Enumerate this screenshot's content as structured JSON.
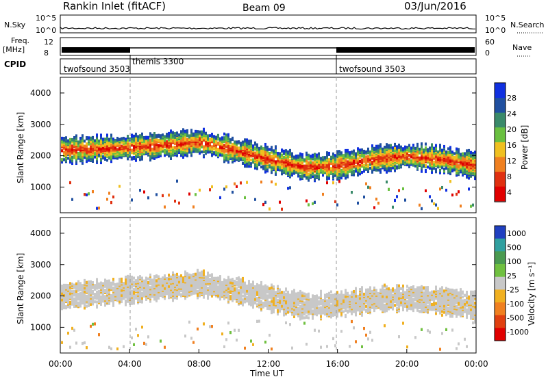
{
  "header": {
    "station": "Rankin Inlet (fitACF)",
    "beam": "Beam 09",
    "date": "03/Jun/2016"
  },
  "noise_panel": {
    "left_label": "N.Sky",
    "right_label": "N.Search",
    "ticks_left": [
      "10^5",
      "10^0"
    ],
    "ticks_right": [
      "10^5",
      "10^0"
    ]
  },
  "freq_panel": {
    "left_label": "Freq.",
    "left_unit": "[MHz]",
    "right_label": "Nave",
    "ticks_left": [
      "12",
      "8"
    ],
    "ticks_right": [
      "60",
      "0"
    ]
  },
  "cpid": {
    "label": "CPID",
    "segments": [
      {
        "name": "twofsound 3503",
        "start": 0,
        "end": 4
      },
      {
        "name": "themis 3300",
        "start": 4,
        "end": 16
      },
      {
        "name": "twofsound 3503",
        "start": 16,
        "end": 24
      }
    ]
  },
  "axes": {
    "y_label": "Slant Range [km]",
    "y_ticks": [
      "1000",
      "2000",
      "3000",
      "4000"
    ],
    "x_label": "Time UT",
    "x_ticks": [
      "00:00",
      "04:00",
      "08:00",
      "12:00",
      "16:00",
      "20:00",
      "00:00"
    ]
  },
  "power_scale": {
    "label": "Power [dB]",
    "ticks": [
      "4",
      "8",
      "12",
      "16",
      "20",
      "24",
      "28"
    ],
    "colors": [
      "#1030e0",
      "#2050a0",
      "#3a8a6a",
      "#6ac040",
      "#f0c020",
      "#f08020",
      "#e03010",
      "#e00000"
    ]
  },
  "velocity_scale": {
    "label": "Velocity [m s⁻¹]",
    "ticks": [
      "1000",
      "500",
      "100",
      "25",
      "-25",
      "-100",
      "-500",
      "-1000"
    ],
    "colors": [
      "#2040c0",
      "#30a0a0",
      "#4a9a50",
      "#70c040",
      "#c8c8c8",
      "#f0b020",
      "#f08020",
      "#e04010",
      "#e00000"
    ]
  },
  "chart_data": {
    "type": "heatmap",
    "x_range_hours": [
      0,
      24
    ],
    "y_range_km": [
      180,
      4500
    ],
    "grid": false,
    "power_bands": [
      {
        "name": "Power",
        "trace_km": [
          [
            0,
            2200
          ],
          [
            3,
            2250
          ],
          [
            6,
            2350
          ],
          [
            8,
            2450
          ],
          [
            10,
            2200
          ],
          [
            12,
            1900
          ],
          [
            14,
            1650
          ],
          [
            16,
            1700
          ],
          [
            18,
            1900
          ],
          [
            20,
            2000
          ],
          [
            22,
            1900
          ],
          [
            24,
            1700
          ]
        ]
      }
    ],
    "velocity_bands": [
      {
        "name": "Velocity",
        "trace_km": [
          [
            0,
            2000
          ],
          [
            3,
            2150
          ],
          [
            6,
            2300
          ],
          [
            8,
            2400
          ],
          [
            10,
            2200
          ],
          [
            12,
            1950
          ],
          [
            14,
            1700
          ],
          [
            16,
            1750
          ],
          [
            18,
            1900
          ],
          [
            20,
            1950
          ],
          [
            22,
            1850
          ],
          [
            24,
            1700
          ]
        ]
      }
    ]
  }
}
